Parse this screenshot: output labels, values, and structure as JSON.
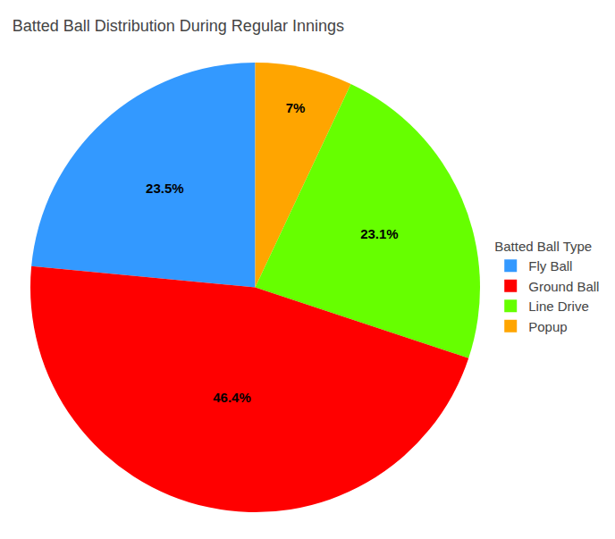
{
  "chart_data": {
    "type": "pie",
    "title": "Batted Ball Distribution During Regular Innings",
    "categories": [
      "Fly Ball",
      "Popup",
      "Line Drive",
      "Ground Ball"
    ],
    "values": [
      23.5,
      7,
      23.1,
      46.4
    ],
    "value_labels": [
      "23.5%",
      "7%",
      "23.1%",
      "46.4%"
    ],
    "colors": [
      "#3399FF",
      "#FFA500",
      "#66FF00",
      "#FF0000"
    ],
    "data_labels": true,
    "legend": "right",
    "legend_title": "Batted Ball Type",
    "legend_entries": [
      "Fly Ball",
      "Ground Ball",
      "Line Drive",
      "Popup"
    ]
  }
}
